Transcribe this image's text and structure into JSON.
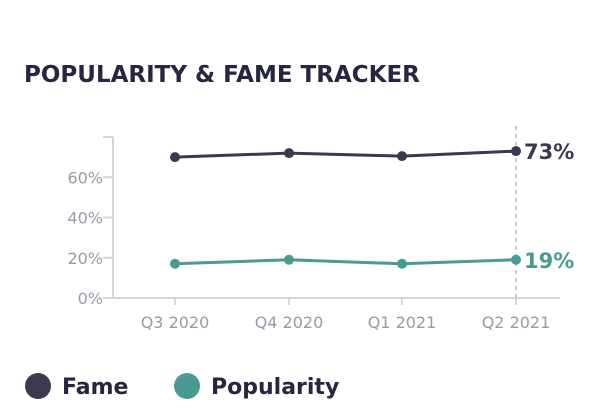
{
  "chart_data": {
    "type": "line",
    "title": "POPULARITY & FAME TRACKER",
    "categories": [
      "Q3 2020",
      "Q4 2020",
      "Q1 2021",
      "Q2 2021"
    ],
    "y_ticks": [
      "0%",
      "20%",
      "40%",
      "60%"
    ],
    "ylim": [
      0,
      80
    ],
    "grid": false,
    "legend_position": "bottom",
    "series": [
      {
        "name": "Fame",
        "values": [
          70,
          72,
          70.5,
          73
        ],
        "color": "#3b3850",
        "end_label": "73%"
      },
      {
        "name": "Popularity",
        "values": [
          17,
          19,
          17,
          19
        ],
        "color": "#4a9a94",
        "end_label": "19%"
      }
    ]
  }
}
